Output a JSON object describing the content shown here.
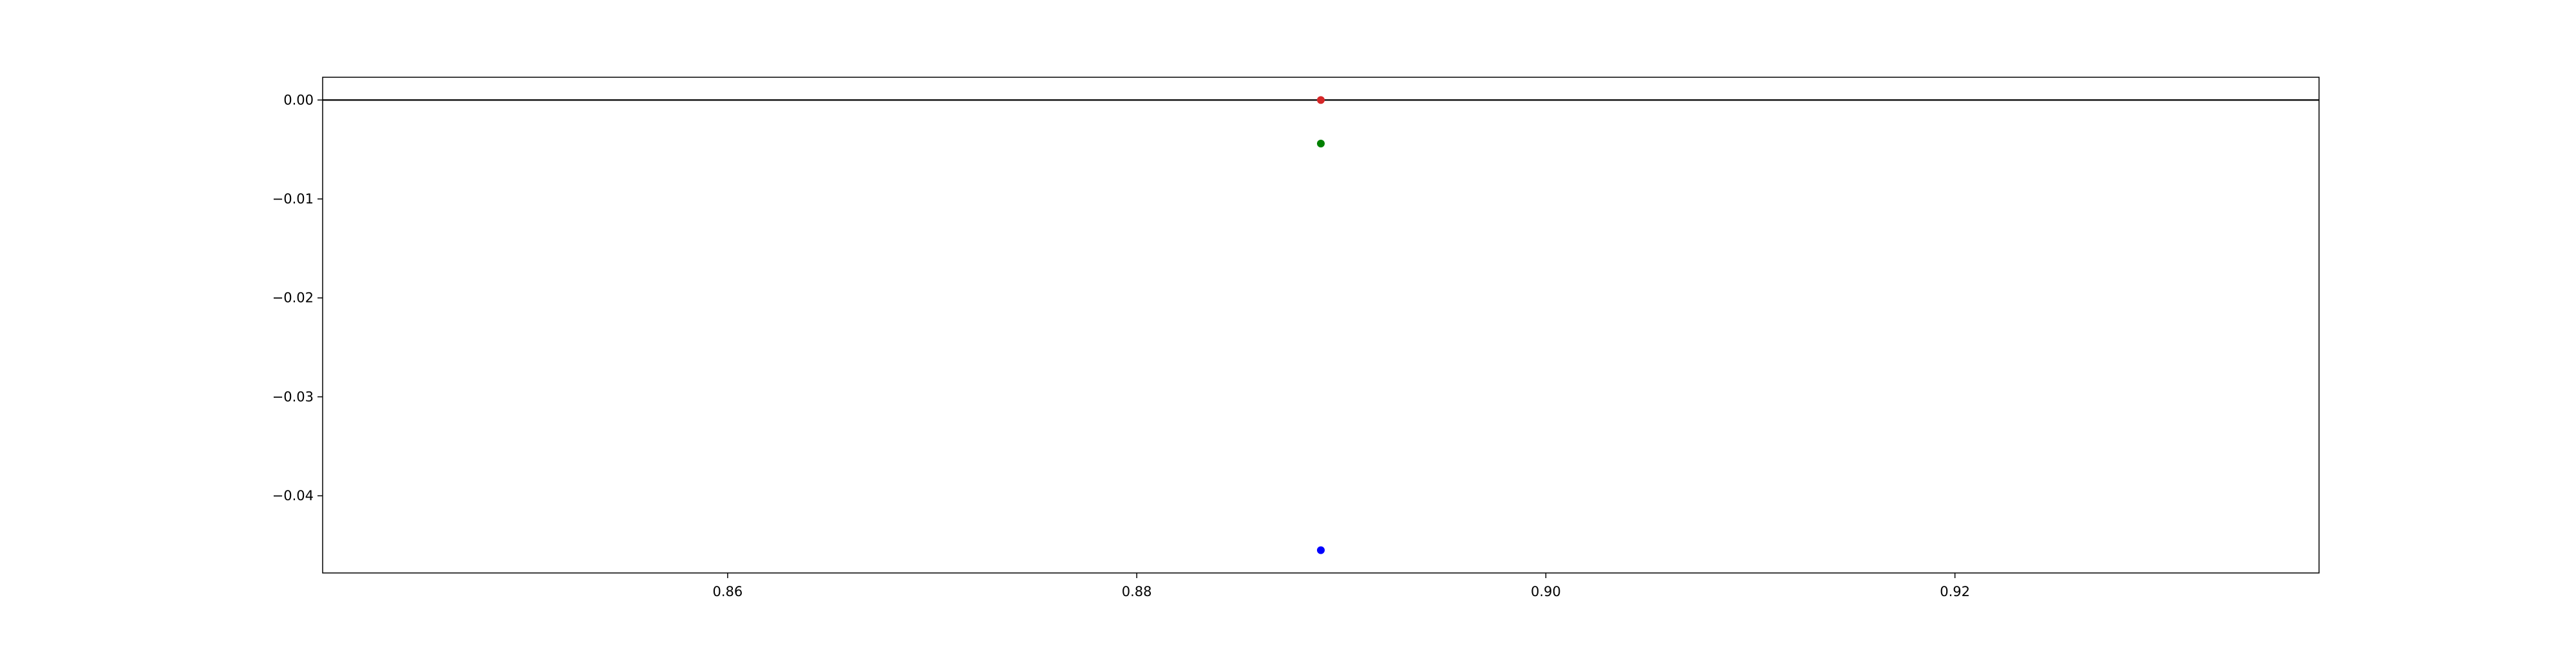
{
  "chart_data": {
    "type": "scatter",
    "title": "",
    "xlabel": "",
    "ylabel": "",
    "xlim": [
      0.8402,
      0.9378
    ],
    "ylim": [
      -0.0478,
      0.0023
    ],
    "x_ticks": [
      0.86,
      0.88,
      0.9,
      0.92
    ],
    "x_tick_labels": [
      "0.86",
      "0.88",
      "0.90",
      "0.92"
    ],
    "y_ticks": [
      0.0,
      -0.01,
      -0.02,
      -0.03,
      -0.04
    ],
    "y_tick_labels": [
      "0.00",
      "−0.01",
      "−0.02",
      "−0.03",
      "−0.04"
    ],
    "grid": false,
    "hline": {
      "y": 0.0,
      "color": "#000000"
    },
    "series": [
      {
        "color": "#d62728",
        "x": [
          0.889
        ],
        "y": [
          0.0
        ]
      },
      {
        "color": "#008000",
        "x": [
          0.889
        ],
        "y": [
          -0.0044
        ]
      },
      {
        "color": "#0000ff",
        "x": [
          0.889
        ],
        "y": [
          -0.0455
        ]
      }
    ]
  }
}
